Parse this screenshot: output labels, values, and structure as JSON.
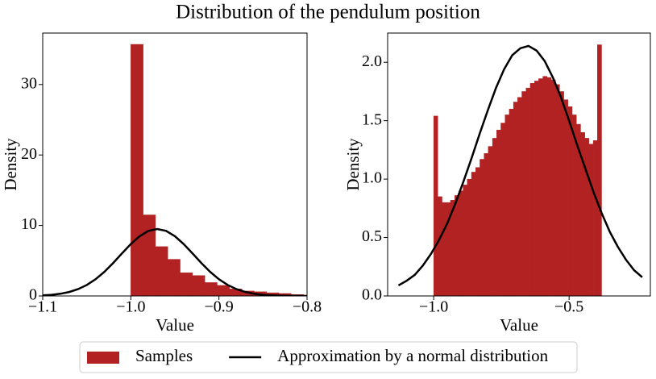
{
  "title": "Distribution of the pendulum position",
  "legend": [
    {
      "name": "Samples",
      "color": "#b22222",
      "kind": "patch"
    },
    {
      "name": "Approximation by a normal distribution",
      "color": "#000000",
      "kind": "line"
    }
  ],
  "chart_data": [
    {
      "type": "histogram",
      "xlabel": "Value",
      "ylabel": "Density",
      "xlim": [
        -1.1,
        -0.8
      ],
      "ylim": [
        0,
        37.3
      ],
      "xticks": [
        {
          "value": -1.1,
          "label": "−1.1"
        },
        {
          "value": -1.0,
          "label": "−1.0"
        },
        {
          "value": -0.9,
          "label": "−0.9"
        },
        {
          "value": -0.8,
          "label": "−0.8"
        }
      ],
      "yticks": [
        0,
        10,
        20,
        30
      ],
      "color": "#b22222",
      "bins": [
        -1.0,
        -0.986,
        -0.972,
        -0.958,
        -0.944,
        -0.93,
        -0.916,
        -0.902,
        -0.888,
        -0.874,
        -0.86,
        -0.846,
        -0.832,
        -0.818,
        -0.804
      ],
      "values": [
        35.7,
        11.5,
        7.0,
        5.2,
        3.3,
        2.9,
        1.9,
        1.5,
        1.0,
        0.7,
        0.6,
        0.45,
        0.35,
        0.2
      ],
      "line": {
        "color": "#000000",
        "x": [
          -1.1,
          -1.09,
          -1.08,
          -1.07,
          -1.06,
          -1.05,
          -1.04,
          -1.03,
          -1.02,
          -1.01,
          -1.0,
          -0.99,
          -0.98,
          -0.97,
          -0.96,
          -0.95,
          -0.94,
          -0.93,
          -0.92,
          -0.91,
          -0.9,
          -0.89,
          -0.88,
          -0.87,
          -0.86,
          -0.85,
          -0.84,
          -0.83,
          -0.82,
          -0.81,
          -0.8
        ],
        "values": [
          0.08,
          0.16,
          0.31,
          0.56,
          0.96,
          1.55,
          2.37,
          3.42,
          4.68,
          6.04,
          7.36,
          8.48,
          9.23,
          9.5,
          9.23,
          8.48,
          7.36,
          6.04,
          4.68,
          3.42,
          2.37,
          1.55,
          0.96,
          0.56,
          0.31,
          0.16,
          0.08,
          0.04,
          0.02,
          0.01,
          0.0
        ]
      }
    },
    {
      "type": "histogram",
      "xlabel": "Value",
      "ylabel": "Density",
      "xlim": [
        -1.17,
        -0.2
      ],
      "ylim": [
        0,
        2.25
      ],
      "xticks": [
        {
          "value": -1.0,
          "label": "−1.0"
        },
        {
          "value": -0.5,
          "label": "−0.5"
        }
      ],
      "yticks": [
        {
          "value": 0,
          "label": "0.0"
        },
        {
          "value": 0.5,
          "label": "0.5"
        },
        {
          "value": 1,
          "label": "1.0"
        },
        {
          "value": 1.5,
          "label": "1.5"
        },
        {
          "value": 2,
          "label": "2.0"
        }
      ],
      "color": "#b22222",
      "bins": [
        -1.0,
        -0.9845,
        -0.969,
        -0.9535,
        -0.938,
        -0.9225,
        -0.907,
        -0.8915,
        -0.876,
        -0.8605,
        -0.845,
        -0.8295,
        -0.814,
        -0.7985,
        -0.783,
        -0.7675,
        -0.752,
        -0.7365,
        -0.721,
        -0.7055,
        -0.69,
        -0.6745,
        -0.659,
        -0.6435,
        -0.628,
        -0.6125,
        -0.597,
        -0.5815,
        -0.566,
        -0.5505,
        -0.535,
        -0.5195,
        -0.504,
        -0.4885,
        -0.473,
        -0.4575,
        -0.442,
        -0.4265,
        -0.411,
        -0.3955,
        -0.38
      ],
      "values": [
        1.54,
        0.85,
        0.8,
        0.8,
        0.82,
        0.86,
        0.9,
        0.95,
        1.0,
        1.06,
        1.1,
        1.17,
        1.22,
        1.28,
        1.35,
        1.42,
        1.48,
        1.55,
        1.6,
        1.66,
        1.7,
        1.75,
        1.78,
        1.82,
        1.84,
        1.86,
        1.88,
        1.87,
        1.85,
        1.81,
        1.75,
        1.68,
        1.62,
        1.55,
        1.47,
        1.4,
        1.35,
        1.3,
        1.33,
        2.15
      ],
      "line": {
        "color": "#000000",
        "x": [
          -1.13,
          -1.1,
          -1.07,
          -1.04,
          -1.01,
          -0.98,
          -0.95,
          -0.92,
          -0.89,
          -0.86,
          -0.83,
          -0.8,
          -0.77,
          -0.74,
          -0.71,
          -0.68,
          -0.65,
          -0.62,
          -0.59,
          -0.56,
          -0.53,
          -0.5,
          -0.47,
          -0.44,
          -0.41,
          -0.38,
          -0.35,
          -0.32,
          -0.29,
          -0.26,
          -0.23
        ],
        "values": [
          0.09,
          0.13,
          0.18,
          0.26,
          0.36,
          0.48,
          0.62,
          0.79,
          0.98,
          1.18,
          1.39,
          1.59,
          1.78,
          1.94,
          2.06,
          2.12,
          2.14,
          2.1,
          2.01,
          1.87,
          1.7,
          1.5,
          1.29,
          1.09,
          0.89,
          0.71,
          0.55,
          0.42,
          0.31,
          0.22,
          0.16
        ]
      }
    }
  ]
}
